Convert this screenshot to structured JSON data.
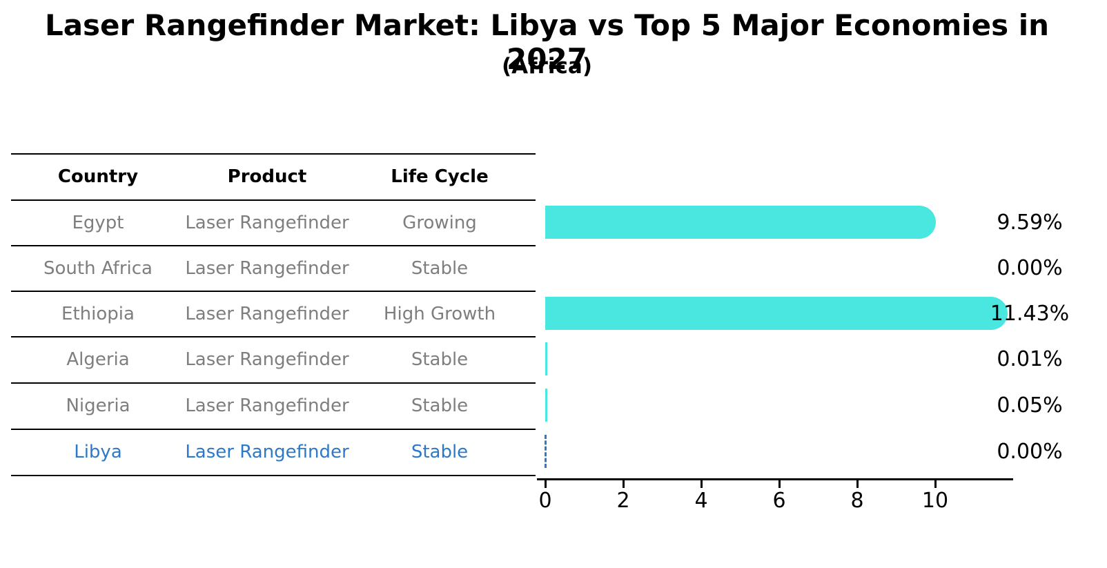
{
  "title": "Laser Rangefinder Market: Libya vs Top 5 Major Economies in 2027",
  "subtitle": "(Africa)",
  "table": {
    "headers": {
      "country": "Country",
      "product": "Product",
      "life_cycle": "Life Cycle"
    },
    "rows": [
      {
        "country": "Egypt",
        "product": "Laser Rangefinder",
        "life_cycle": "Growing"
      },
      {
        "country": "South Africa",
        "product": "Laser Rangefinder",
        "life_cycle": "Stable"
      },
      {
        "country": "Ethiopia",
        "product": "Laser Rangefinder",
        "life_cycle": "High Growth"
      },
      {
        "country": "Algeria",
        "product": "Laser Rangefinder",
        "life_cycle": "Stable"
      },
      {
        "country": "Nigeria",
        "product": "Laser Rangefinder",
        "life_cycle": "Stable"
      },
      {
        "country": "Libya",
        "product": "Laser Rangefinder",
        "life_cycle": "Stable"
      }
    ],
    "highlighted_row": "Libya"
  },
  "chart_data": {
    "type": "bar",
    "orientation": "horizontal",
    "title": "Laser Rangefinder Market: Libya vs Top 5 Major Economies in 2027",
    "subtitle": "(Africa)",
    "categories": [
      "Egypt",
      "South Africa",
      "Ethiopia",
      "Algeria",
      "Nigeria",
      "Libya"
    ],
    "values": [
      9.59,
      0.0,
      11.43,
      0.01,
      0.05,
      0.0
    ],
    "value_labels": [
      "9.59%",
      "0.00%",
      "11.43%",
      "0.01%",
      "0.05%",
      "0.00%"
    ],
    "x_ticks": [
      "0",
      "2",
      "4",
      "6",
      "8",
      "10"
    ],
    "xlim": [
      0,
      12
    ],
    "grid": false,
    "legend": false,
    "bar_color": "#4ae6e0",
    "highlight_color": "#2e79c7",
    "highlight_index": 5,
    "highlight_style": "dashed-outline-zero-bar"
  },
  "colors": {
    "background": "#ffffff",
    "bar": "#4ae6e0",
    "highlight_blue": "#2e79c7",
    "table_text_gray": "#7e7e7e",
    "line_black": "#000000"
  }
}
